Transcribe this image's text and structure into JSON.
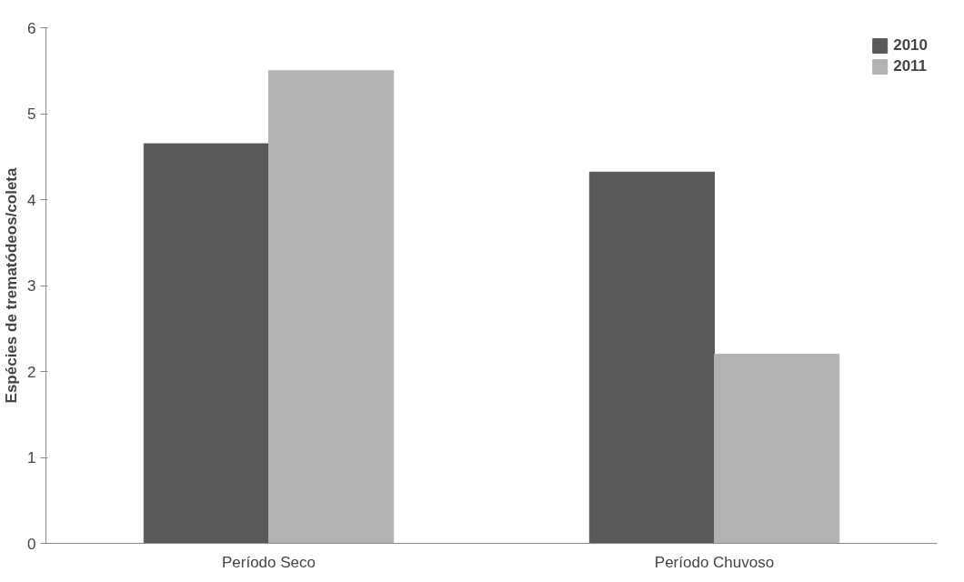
{
  "chart_data": {
    "type": "bar",
    "ylabel": "Espécies de trematódeos/coleta",
    "categories": [
      "Período Seco",
      "Período Chuvoso"
    ],
    "series": [
      {
        "name": "2010",
        "color": "#595959",
        "values": [
          4.65,
          4.32
        ]
      },
      {
        "name": "2011",
        "color": "#b2b2b2",
        "values": [
          5.5,
          2.2
        ]
      }
    ],
    "ylim": [
      0,
      6
    ],
    "yticks": [
      0,
      1,
      2,
      3,
      4,
      5,
      6
    ],
    "grid": false,
    "legend": "top right"
  }
}
